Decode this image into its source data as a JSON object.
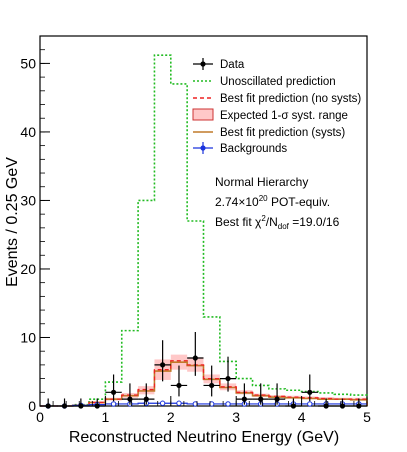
{
  "chart_data": {
    "type": "histogram",
    "xlabel": "Reconstructed Neutrino Energy (GeV)",
    "ylabel": "Events / 0.25 GeV",
    "xlim": [
      0,
      5
    ],
    "ylim": [
      0,
      54
    ],
    "x_ticks": [
      0,
      1,
      2,
      3,
      4,
      5
    ],
    "y_ticks": [
      0,
      10,
      20,
      30,
      40,
      50
    ],
    "grid": false,
    "legend_position": "top-right",
    "bin_edges": [
      0.0,
      0.25,
      0.5,
      0.75,
      1.0,
      1.25,
      1.5,
      1.75,
      2.0,
      2.25,
      2.5,
      2.75,
      3.0,
      3.25,
      3.5,
      3.75,
      4.0,
      4.25,
      4.5,
      4.75,
      5.0
    ],
    "series": [
      {
        "name": "Data",
        "style": "points-with-errors",
        "color": "#000000",
        "x": [
          0.125,
          0.375,
          0.625,
          0.875,
          1.125,
          1.375,
          1.625,
          1.875,
          2.125,
          2.375,
          2.625,
          2.875,
          3.125,
          3.375,
          3.625,
          3.875,
          4.125,
          4.375,
          4.625,
          4.875
        ],
        "values": [
          0,
          0,
          0,
          0,
          2,
          1,
          1,
          6,
          3,
          7,
          3,
          4,
          1,
          1,
          1,
          0,
          2,
          0,
          0,
          0
        ]
      },
      {
        "name": "Unoscillated prediction",
        "style": "dotted-step",
        "color": "#22bb22",
        "values": [
          0,
          0,
          0.2,
          1.0,
          3.5,
          11.0,
          30.0,
          51.2,
          47.0,
          27.0,
          13.0,
          6.5,
          4.0,
          3.0,
          2.5,
          2.3,
          2.1,
          1.9,
          1.7,
          1.6
        ]
      },
      {
        "name": "Best fit prediction (no systs)",
        "style": "dashed-step",
        "color": "#ee2222",
        "values": [
          0,
          0,
          0.1,
          0.5,
          1.0,
          1.6,
          2.4,
          5.3,
          6.6,
          6.0,
          4.0,
          2.8,
          2.0,
          1.6,
          1.4,
          1.3,
          1.2,
          1.1,
          1.0,
          1.0
        ]
      },
      {
        "name": "Expected 1-σ syst. range",
        "style": "band",
        "color": "#ff9999",
        "lower": [
          0,
          0,
          0.1,
          0.4,
          0.8,
          1.2,
          1.7,
          3.8,
          5.3,
          5.0,
          3.3,
          2.3,
          1.7,
          1.3,
          1.2,
          1.1,
          1.0,
          0.9,
          0.9,
          0.8
        ],
        "upper": [
          0,
          0,
          0.2,
          0.7,
          1.2,
          1.9,
          2.9,
          6.8,
          7.5,
          7.1,
          4.6,
          3.3,
          2.3,
          1.8,
          1.6,
          1.5,
          1.4,
          1.3,
          1.2,
          1.2
        ]
      },
      {
        "name": "Best fit prediction (systs)",
        "style": "solid-step",
        "color": "#c07a2a",
        "values": [
          0,
          0,
          0.1,
          0.5,
          1.0,
          1.5,
          2.2,
          5.1,
          6.4,
          5.9,
          3.9,
          2.7,
          1.9,
          1.5,
          1.3,
          1.2,
          1.1,
          1.0,
          1.0,
          0.9
        ]
      },
      {
        "name": "Backgrounds",
        "style": "points-blue",
        "color": "#1a33dd",
        "values": [
          0,
          0,
          0.1,
          0.2,
          0.3,
          0.3,
          0.4,
          0.4,
          0.4,
          0.3,
          0.3,
          0.3,
          0.3,
          0.3,
          0.3,
          0.3,
          0.3,
          0.3,
          0.3,
          0.3
        ]
      }
    ],
    "data_errors": {
      "low": [
        0,
        0,
        0,
        0,
        1.3,
        0.8,
        0.8,
        2.4,
        1.6,
        2.6,
        1.6,
        1.9,
        0.8,
        0.8,
        0.8,
        0,
        1.3,
        0,
        0,
        0
      ],
      "high": [
        1.1,
        1.1,
        1.1,
        1.1,
        2.6,
        2.3,
        2.3,
        3.6,
        2.9,
        3.8,
        2.9,
        3.2,
        2.3,
        2.3,
        2.3,
        1.1,
        2.6,
        1.1,
        1.1,
        1.1
      ]
    },
    "annotations": [
      "Normal Hierarchy",
      "2.74×10²⁰ POT-equiv.",
      "Best fit χ²/N_dof =19.0/16"
    ]
  }
}
